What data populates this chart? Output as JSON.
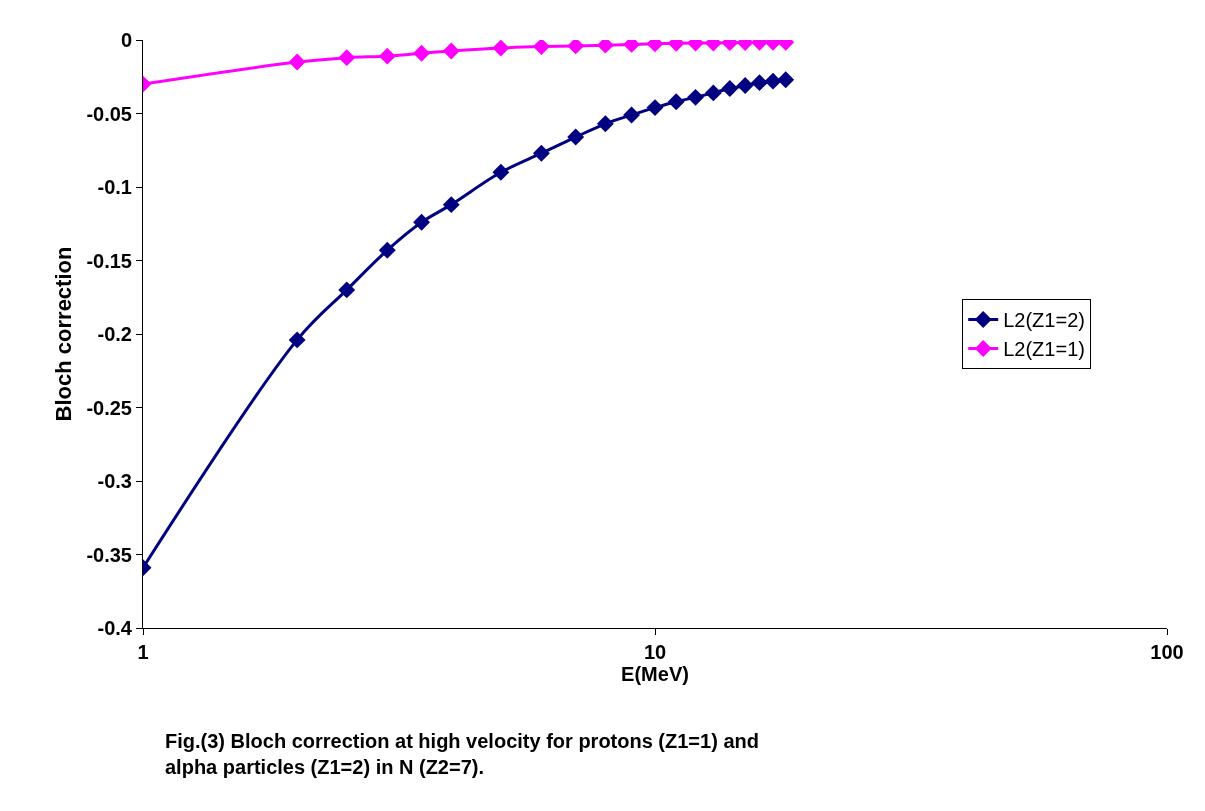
{
  "chart_data": {
    "type": "line",
    "xlabel": "E(MeV)",
    "ylabel": "Bloch correction",
    "log": "x",
    "xlim": [
      1,
      100
    ],
    "xticks": [
      1,
      10,
      100
    ],
    "ylim": [
      -0.4,
      0
    ],
    "yticks": [
      -0.4,
      -0.35,
      -0.3,
      -0.25,
      -0.2,
      -0.15,
      -0.1,
      -0.05,
      0
    ],
    "legend": "right",
    "marker": "diamond",
    "line_style": "solid",
    "x": [
      1,
      2,
      2.5,
      3,
      3.5,
      4,
      5,
      6,
      7,
      8,
      9,
      10,
      11,
      12,
      13,
      14,
      15,
      16,
      17,
      18
    ],
    "series": [
      {
        "name": "L2(Z1=2)",
        "color": "#000080",
        "values": [
          -0.359,
          -0.204,
          -0.17,
          -0.143,
          -0.124,
          -0.112,
          -0.09,
          -0.077,
          -0.066,
          -0.057,
          -0.051,
          -0.046,
          -0.042,
          -0.039,
          -0.036,
          -0.033,
          -0.031,
          -0.029,
          -0.028,
          -0.027
        ]
      },
      {
        "name": "L2(Z1=1)",
        "color": "#ff00ff",
        "values": [
          -0.03,
          -0.015,
          -0.012,
          -0.011,
          -0.009,
          -0.0075,
          -0.0055,
          -0.0045,
          -0.004,
          -0.0035,
          -0.003,
          -0.0025,
          -0.0022,
          -0.002,
          -0.002,
          -0.0018,
          -0.0017,
          -0.0016,
          -0.0015,
          -0.0015
        ]
      }
    ],
    "annotations": [
      "Fig.(3) Bloch correction at high velocity for protons (Z1=1) and alpha particles (Z1=2) in N (Z2=7)."
    ]
  }
}
